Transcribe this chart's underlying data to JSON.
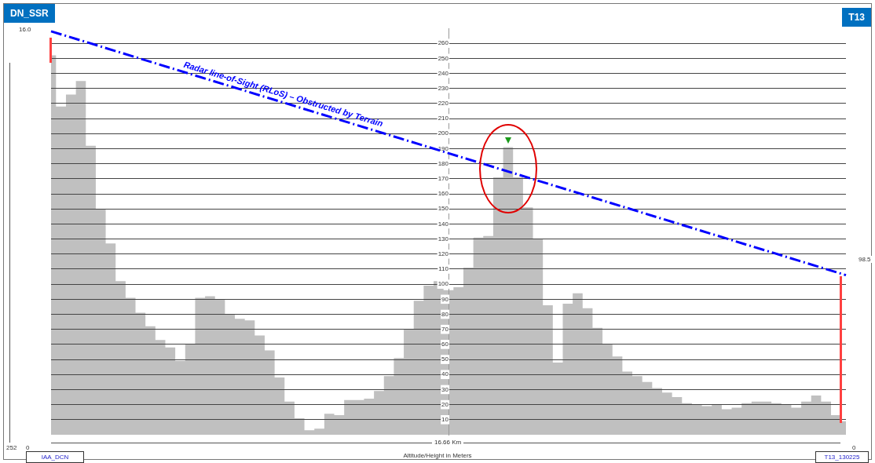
{
  "chart_data": {
    "type": "area",
    "xlabel": "Altitude/Height in Meters",
    "categories": [
      null,
      null,
      null,
      null,
      null,
      null,
      null,
      null,
      null,
      null,
      null,
      null,
      null,
      null,
      null,
      null,
      null,
      null,
      null,
      null,
      null,
      null,
      null,
      null,
      null,
      null,
      null,
      null,
      null,
      null,
      null,
      null,
      null,
      null,
      null,
      null,
      null,
      null,
      null,
      null,
      null,
      null,
      null,
      null,
      null,
      null,
      null,
      null,
      null,
      null,
      null,
      null,
      null,
      null,
      null,
      null,
      null,
      null,
      null,
      null,
      null,
      null,
      null,
      null,
      null,
      null,
      null,
      null,
      null,
      null,
      null,
      null,
      null,
      null,
      null,
      null,
      null,
      null,
      null,
      null,
      null
    ],
    "series": [
      {
        "color": "#c0c0c0",
        "values": [
          252,
          218,
          226,
          235,
          192,
          150,
          127,
          102,
          91,
          81,
          72,
          63,
          58,
          49,
          60,
          91,
          92,
          90,
          80,
          77,
          76,
          66,
          56,
          38,
          22,
          11,
          3,
          4,
          14,
          13,
          23,
          23,
          24,
          29,
          39,
          51,
          70,
          89,
          99,
          102,
          96,
          98,
          111,
          131,
          132,
          171,
          191,
          171,
          151,
          130,
          86,
          48,
          87,
          94,
          84,
          71,
          60,
          52,
          42,
          39,
          35,
          31,
          28,
          25,
          21,
          20,
          19,
          20,
          17,
          18,
          21,
          22,
          22,
          21,
          20,
          18,
          22,
          26,
          22,
          13,
          9
        ]
      },
      {
        "type": "line",
        "color": "#0000ff",
        "line_style": "dashed",
        "values": [
          268,
          null,
          null,
          null,
          null,
          null,
          null,
          null,
          null,
          null,
          null,
          null,
          null,
          null,
          null,
          null,
          null,
          null,
          null,
          null,
          null,
          null,
          null,
          null,
          null,
          null,
          null,
          null,
          null,
          null,
          null,
          null,
          null,
          null,
          null,
          null,
          null,
          null,
          null,
          null,
          null,
          null,
          null,
          null,
          null,
          null,
          null,
          null,
          null,
          null,
          null,
          null,
          null,
          null,
          null,
          null,
          null,
          null,
          null,
          null,
          null,
          null,
          null,
          null,
          null,
          null,
          null,
          null,
          null,
          null,
          null,
          null,
          null,
          null,
          null,
          null,
          null,
          null,
          null,
          null,
          106
        ]
      }
    ],
    "ylim": [
      0,
      270
    ],
    "yticks": [
      10,
      20,
      30,
      40,
      50,
      60,
      70,
      80,
      90,
      100,
      110,
      120,
      130,
      140,
      150,
      160,
      170,
      180,
      190,
      200,
      210,
      220,
      230,
      240,
      250,
      260
    ],
    "grid": "y",
    "tick_labels": "y",
    "marker": "none",
    "annotations": [
      "DN_SSR",
      "T13",
      "Radar line-of-Sight (RLoS) – Obstructed by Terrain",
      "16.0",
      "252",
      "0",
      "98.5",
      "0",
      "16.66 Km",
      "IAA_DCN",
      "T13_130225"
    ]
  }
}
